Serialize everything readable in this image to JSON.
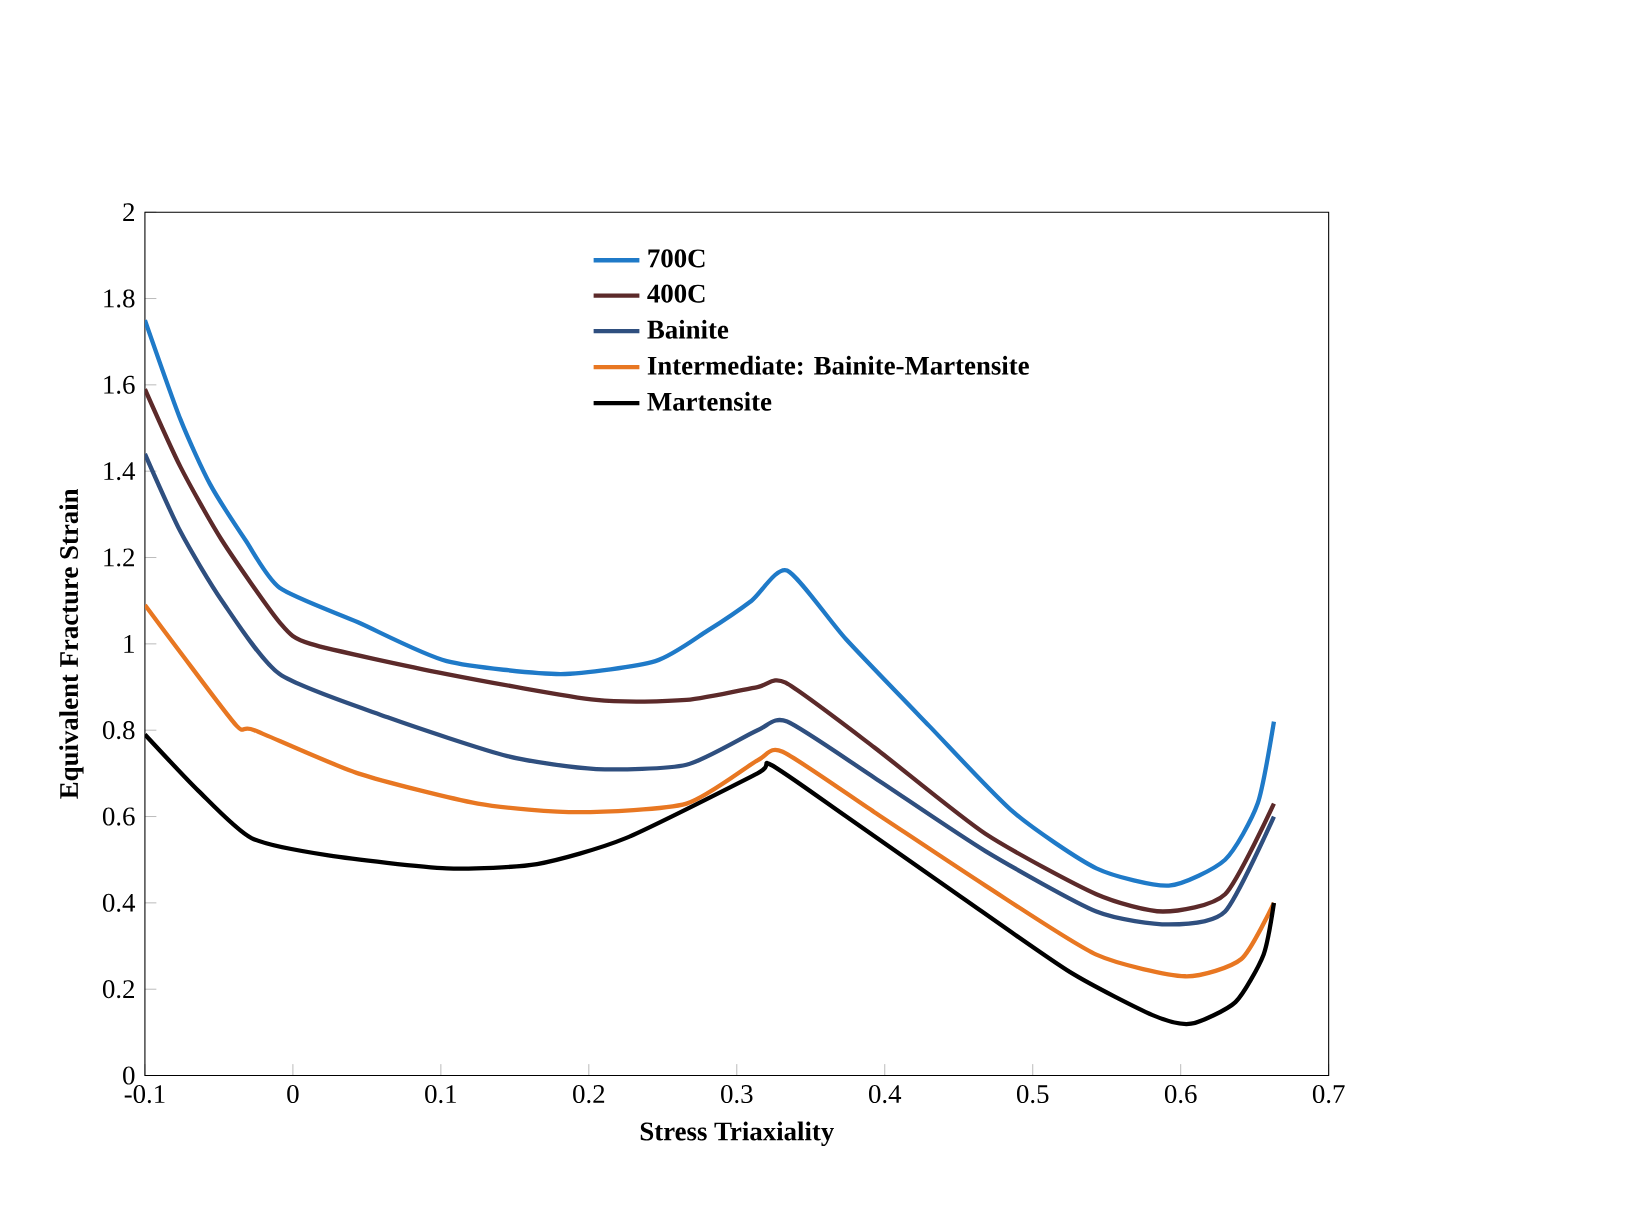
{
  "chart_data": {
    "type": "line",
    "xlabel": "Stress Triaxiality",
    "ylabel": "Equivalent Fracture Strain",
    "xlim": [
      -0.1,
      0.7
    ],
    "ylim": [
      0,
      2
    ],
    "xticks": [
      -0.1,
      0,
      0.1,
      0.2,
      0.3,
      0.4,
      0.5,
      0.6,
      0.7
    ],
    "yticks": [
      0,
      0.2,
      0.4,
      0.6,
      0.8,
      1,
      1.2,
      1.4,
      1.6,
      1.8,
      2
    ],
    "legend": "top",
    "grid": false,
    "marker": "none",
    "line_style": "solid",
    "series": [
      {
        "name": "700C",
        "color": "#1f7ac8",
        "x": [
          -0.1,
          -0.076,
          -0.056,
          -0.032,
          -0.009,
          0.044,
          0.104,
          0.181,
          0.245,
          0.28,
          0.31,
          0.334,
          0.374,
          0.43,
          0.487,
          0.543,
          0.592,
          0.63,
          0.652,
          0.663
        ],
        "values": [
          1.75,
          1.52,
          1.37,
          1.24,
          1.13,
          1.05,
          0.96,
          0.93,
          0.96,
          1.03,
          1.1,
          1.17,
          1.01,
          0.81,
          0.61,
          0.48,
          0.44,
          0.5,
          0.63,
          0.82
        ]
      },
      {
        "name": "400C",
        "color": "#5c2a2a",
        "x": [
          -0.1,
          -0.076,
          -0.048,
          -0.009,
          0.012,
          0.104,
          0.205,
          0.266,
          0.314,
          0.333,
          0.393,
          0.468,
          0.543,
          0.588,
          0.63,
          0.663
        ],
        "values": [
          1.59,
          1.41,
          1.24,
          1.05,
          1.0,
          0.93,
          0.87,
          0.87,
          0.9,
          0.91,
          0.76,
          0.56,
          0.42,
          0.38,
          0.42,
          0.63
        ]
      },
      {
        "name": "Bainite",
        "color": "#2f4f7f",
        "x": [
          -0.1,
          -0.076,
          -0.048,
          -0.009,
          0.064,
          0.145,
          0.205,
          0.266,
          0.314,
          0.334,
          0.393,
          0.468,
          0.543,
          0.592,
          0.63,
          0.663
        ],
        "values": [
          1.44,
          1.26,
          1.1,
          0.93,
          0.83,
          0.74,
          0.71,
          0.72,
          0.8,
          0.82,
          0.69,
          0.52,
          0.38,
          0.35,
          0.38,
          0.6
        ]
      },
      {
        "name": "Intermediate: Bainite-Martensite",
        "color": "#e87722",
        "x": [
          -0.1,
          -0.076,
          -0.038,
          -0.026,
          0.044,
          0.125,
          0.193,
          0.266,
          0.314,
          0.331,
          0.393,
          0.468,
          0.543,
          0.603,
          0.641,
          0.663
        ],
        "values": [
          1.09,
          0.98,
          0.81,
          0.8,
          0.7,
          0.63,
          0.61,
          0.63,
          0.73,
          0.75,
          0.61,
          0.44,
          0.28,
          0.23,
          0.27,
          0.4
        ]
      },
      {
        "name": "Martensite",
        "color": "#000000",
        "x": [
          -0.1,
          -0.064,
          -0.028,
          0.024,
          0.104,
          0.165,
          0.225,
          0.314,
          0.323,
          0.374,
          0.449,
          0.525,
          0.581,
          0.607,
          0.637,
          0.656,
          0.663
        ],
        "values": [
          0.79,
          0.66,
          0.55,
          0.51,
          0.48,
          0.49,
          0.55,
          0.7,
          0.72,
          0.6,
          0.42,
          0.24,
          0.14,
          0.12,
          0.17,
          0.28,
          0.4
        ]
      }
    ]
  }
}
